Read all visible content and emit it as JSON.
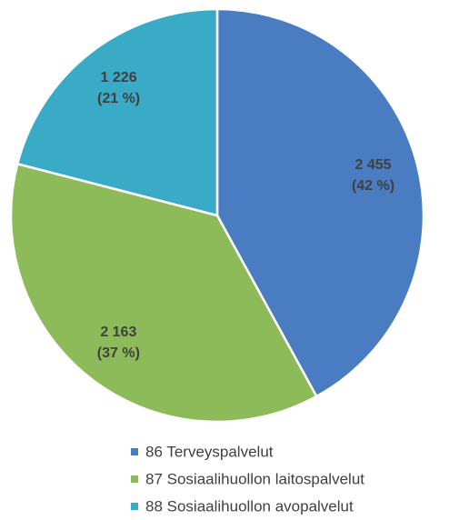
{
  "chart_data": {
    "type": "pie",
    "categories": [
      "86 Terveyspalvelut",
      "87 Sosiaalihuollon laitospalvelut",
      "88 Sosiaalihuollon avopalvelut"
    ],
    "values": [
      2455,
      2163,
      1226
    ],
    "value_labels": [
      "2 455",
      "2 163",
      "1 226"
    ],
    "percentages": [
      42,
      37,
      21
    ],
    "percentage_labels": [
      "(42 %)",
      "(37 %)",
      "(21 %)"
    ],
    "colors": [
      "#4a7cc1",
      "#8dbb5a",
      "#3aabc7"
    ],
    "legend": "bottom"
  }
}
